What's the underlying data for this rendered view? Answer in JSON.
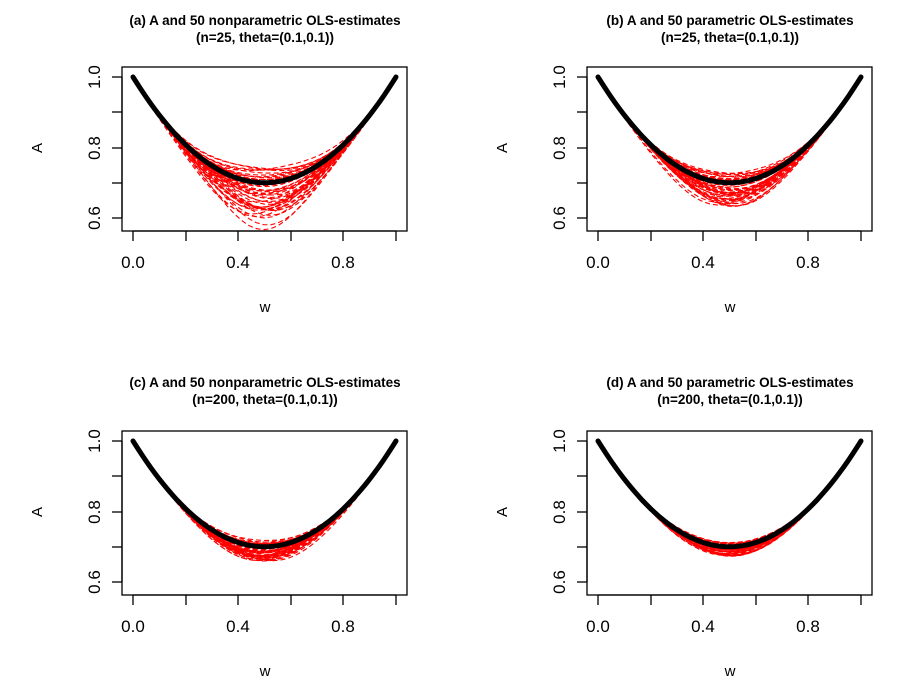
{
  "chart_data": [
    {
      "type": "line",
      "title": "(a) A and 50 nonparametric OLS-estimates",
      "subtitle": "(n=25, theta=(0.1,0.1))",
      "xlabel": "w",
      "ylabel": "A",
      "xlim": [
        0,
        1
      ],
      "ylim": [
        0.58,
        1.0
      ],
      "xticks": [
        "0.0",
        "0.4",
        "0.8"
      ],
      "yticks": [
        "0.6",
        "0.8",
        "1.0"
      ],
      "grid": false,
      "true_curve": {
        "function": "A(w) = 1 - 1.2 w (1 - w)",
        "color": "#000000",
        "style": "solid thick"
      },
      "estimates": {
        "count": 50,
        "color": "#ff0000",
        "style": "dashed",
        "spread": 0.09,
        "x_range": [
          0.08,
          0.95
        ]
      }
    },
    {
      "type": "line",
      "title": "(b) A and 50 parametric OLS-estimates",
      "subtitle": "(n=25, theta=(0.1,0.1))",
      "xlabel": "w",
      "ylabel": "A",
      "xlim": [
        0,
        1
      ],
      "ylim": [
        0.58,
        1.0
      ],
      "xticks": [
        "0.0",
        "0.4",
        "0.8"
      ],
      "yticks": [
        "0.6",
        "0.8",
        "1.0"
      ],
      "grid": false,
      "true_curve": {
        "function": "A(w) = 1 - 1.2 w (1 - w)",
        "color": "#000000",
        "style": "solid thick"
      },
      "estimates": {
        "count": 50,
        "color": "#ff0000",
        "style": "dashed",
        "spread": 0.045,
        "x_range": [
          0.08,
          0.95
        ]
      }
    },
    {
      "type": "line",
      "title": "(c) A and 50 nonparametric OLS-estimates",
      "subtitle": "(n=200, theta=(0.1,0.1))",
      "xlabel": "w",
      "ylabel": "A",
      "xlim": [
        0,
        1
      ],
      "ylim": [
        0.58,
        1.0
      ],
      "xticks": [
        "0.0",
        "0.4",
        "0.8"
      ],
      "yticks": [
        "0.6",
        "0.8",
        "1.0"
      ],
      "grid": false,
      "true_curve": {
        "function": "A(w) = 1 - 1.2 w (1 - w)",
        "color": "#000000",
        "style": "solid thick"
      },
      "estimates": {
        "count": 50,
        "color": "#ff0000",
        "style": "dashed",
        "spread": 0.028,
        "x_range": [
          0.08,
          0.9
        ]
      }
    },
    {
      "type": "line",
      "title": "(d) A and 50 parametric OLS-estimates",
      "subtitle": "(n=200, theta=(0.1,0.1))",
      "xlabel": "w",
      "ylabel": "A",
      "xlim": [
        0,
        1
      ],
      "ylim": [
        0.58,
        1.0
      ],
      "xticks": [
        "0.0",
        "0.4",
        "0.8"
      ],
      "yticks": [
        "0.6",
        "0.8",
        "1.0"
      ],
      "grid": false,
      "true_curve": {
        "function": "A(w) = 1 - 1.2 w (1 - w)",
        "color": "#000000",
        "style": "solid thick"
      },
      "estimates": {
        "count": 50,
        "color": "#ff0000",
        "style": "dashed",
        "spread": 0.018,
        "x_range": [
          0.08,
          0.9
        ]
      }
    }
  ]
}
